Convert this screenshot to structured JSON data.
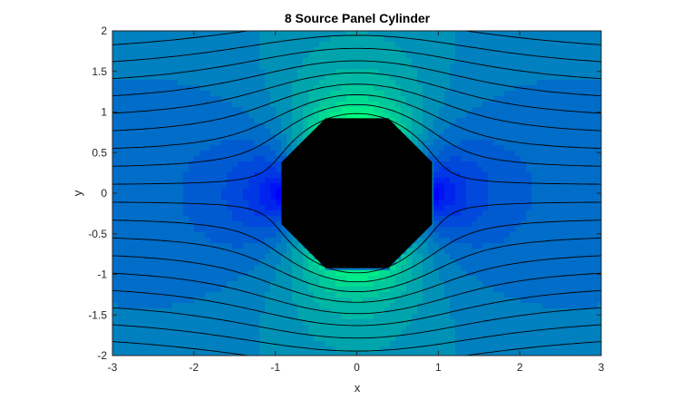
{
  "chart_data": {
    "type": "contour",
    "title": "8 Source Panel Cylinder",
    "xlabel": "x",
    "ylabel": "y",
    "xlim": [
      -3,
      3
    ],
    "ylim": [
      -2,
      2
    ],
    "x_ticks": [
      -3,
      -2,
      -1,
      0,
      1,
      2,
      3
    ],
    "y_ticks": [
      -2,
      -1.5,
      -1,
      -0.5,
      0,
      0.5,
      1,
      1.5,
      2
    ],
    "x_tick_labels": [
      "-3",
      "-2",
      "-1",
      "0",
      "1",
      "2",
      "3"
    ],
    "y_tick_labels": [
      "-2",
      "-1.5",
      "-1",
      "-0.5",
      "0",
      "0.5",
      "1",
      "1.5",
      "2"
    ],
    "grid": false,
    "body": {
      "shape": "octagon",
      "radius": 1,
      "panels": 8,
      "fill": "#000000"
    },
    "field": "velocity magnitude",
    "colormap": "winter",
    "streamlines": {
      "color": "#000000",
      "start_y": [
        -1.9,
        -1.7,
        -1.5,
        -1.3,
        -1.1,
        -0.9,
        -0.7,
        -0.5,
        -0.3,
        -0.1,
        0.1,
        0.3,
        0.5,
        0.7,
        0.9,
        1.1,
        1.3,
        1.5,
        1.7,
        1.9
      ]
    },
    "colors": {
      "low": "#0000ff",
      "high": "#00ff80",
      "body": "#000000",
      "streamline": "#000000"
    }
  }
}
